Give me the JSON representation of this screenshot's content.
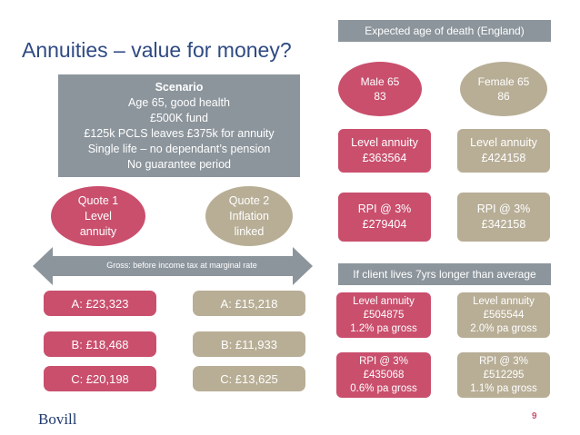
{
  "title": "Annuities – value for money?",
  "scenario": {
    "heading": "Scenario",
    "lines": [
      "Age 65, good health",
      "£500K fund",
      "£125k PCLS leaves £375k for annuity",
      "Single life – no dependant’s pension",
      "No guarantee period"
    ]
  },
  "quote1": {
    "line1": "Quote 1",
    "line2": "Level",
    "line3": "annuity"
  },
  "quote2": {
    "line1": "Quote 2",
    "line2": "Inflation",
    "line3": "linked"
  },
  "gross_label": "Gross: before income tax at marginal rate",
  "quotes_left": [
    "A: £23,323",
    "B: £18,468",
    "C: £20,198"
  ],
  "quotes_right": [
    "A: £15,218",
    "B: £11,933",
    "C: £13,625"
  ],
  "expected_header": "Expected age of death (England)",
  "male": {
    "label": "Male 65",
    "age": "83"
  },
  "female": {
    "label": "Female 65",
    "age": "86"
  },
  "male_level": {
    "line1": "Level annuity",
    "line2": "£363564"
  },
  "female_level": {
    "line1": "Level annuity",
    "line2": "£424158"
  },
  "male_rpi": {
    "line1": "RPI @ 3%",
    "line2": "£279404"
  },
  "female_rpi": {
    "line1": "RPI @ 3%",
    "line2": "£342158"
  },
  "longer_header": "If client lives 7yrs longer than average",
  "male_level_longer": {
    "line1": "Level annuity",
    "line2": "£504875",
    "line3": "1.2% pa gross"
  },
  "female_level_longer": {
    "line1": "Level annuity",
    "line2": "£565544",
    "line3": "2.0% pa gross"
  },
  "male_rpi_longer": {
    "line1": "RPI @ 3%",
    "line2": "£435068",
    "line3": "0.6% pa gross"
  },
  "female_rpi_longer": {
    "line1": "RPI @ 3%",
    "line2": "£512295",
    "line3": "1.1% pa gross"
  },
  "logo_text": "Bovill",
  "page_number": "9",
  "colors": {
    "title": "#2f4a83",
    "grey": "#8c959c",
    "pink": "#c94f6d",
    "tan": "#b8ae96"
  }
}
